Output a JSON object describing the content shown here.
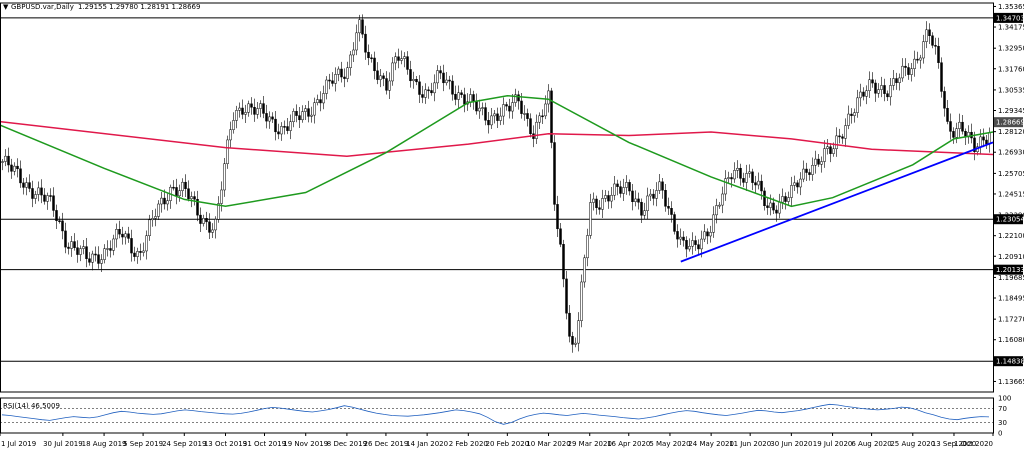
{
  "header": {
    "arrow": "▼",
    "symbol": "GBPUSD.var,Daily",
    "ohlc": "1.29155 1.29780 1.28191 1.28669"
  },
  "rsi": {
    "label": "RSI(14) 46.5009",
    "ticks": [
      "100",
      "70",
      "30",
      "0"
    ],
    "levels": [
      70,
      30
    ],
    "values": [
      52,
      50,
      47,
      44,
      41,
      38,
      36,
      40,
      44,
      47,
      45,
      43,
      46,
      52,
      58,
      62,
      60,
      57,
      55,
      53,
      55,
      59,
      63,
      66,
      64,
      61,
      59,
      57,
      55,
      54,
      56,
      60,
      65,
      70,
      73,
      71,
      68,
      65,
      62,
      60,
      63,
      67,
      72,
      78,
      74,
      68,
      62,
      57,
      53,
      50,
      49,
      48,
      50,
      52,
      55,
      58,
      62,
      66,
      64,
      60,
      55,
      45,
      32,
      25,
      30,
      40,
      48,
      53,
      57,
      55,
      52,
      50,
      53,
      56,
      54,
      51,
      49,
      47,
      44,
      42,
      40,
      43,
      47,
      52,
      57,
      61,
      64,
      62,
      58,
      55,
      52,
      50,
      53,
      57,
      61,
      65,
      63,
      60,
      58,
      61,
      64,
      68,
      73,
      78,
      82,
      80,
      76,
      73,
      70,
      68,
      66,
      68,
      70,
      74,
      72,
      66,
      58,
      52,
      45,
      40,
      38,
      42,
      45,
      47,
      46
    ]
  },
  "price_axis": {
    "ticks": [
      "1.35365",
      "1.34175",
      "1.32950",
      "1.31760",
      "1.30535",
      "1.29345",
      "1.28120",
      "1.26930",
      "1.25705",
      "1.24515",
      "1.23290",
      "1.22100",
      "1.20910",
      "1.19685",
      "1.18495",
      "1.17270",
      "1.16080",
      "1.14890",
      "1.13665"
    ],
    "tags": [
      {
        "text": "1.34703",
        "color": "#000000"
      },
      {
        "text": "1.28669",
        "color": "#4d4d4d"
      },
      {
        "text": "1.23054",
        "color": "#000000"
      },
      {
        "text": "1.20133",
        "color": "#000000"
      },
      {
        "text": "1.14838",
        "color": "#000000"
      }
    ]
  },
  "time_axis": {
    "labels": [
      "1 Jul 2019",
      "30 Jul 2019",
      "18 Aug 2019",
      "5 Sep 2019",
      "24 Sep 2019",
      "13 Oct 2019",
      "31 Oct 2019",
      "19 Nov 2019",
      "8 Dec 2019",
      "26 Dec 2019",
      "14 Jan 2020",
      "2 Feb 2020",
      "20 Feb 2020",
      "10 Mar 2020",
      "29 Mar 2020",
      "16 Apr 2020",
      "5 May 2020",
      "24 May 2020",
      "11 Jun 2020",
      "30 Jun 2020",
      "19 Jul 2020",
      "6 Aug 2020",
      "25 Aug 2020",
      "13 Sep 2020",
      "1 Oct 2020"
    ]
  },
  "chart_data": {
    "type": "candlestick",
    "symbol": "GBPUSD.var",
    "timeframe": "Daily",
    "last_bar": {
      "open": 1.29155,
      "high": 1.2978,
      "low": 1.28191,
      "close": 1.28669
    },
    "ylim": [
      1.13055,
      1.35565
    ],
    "x_range": [
      "1 Jul 2019",
      "1 Oct 2020"
    ],
    "close_path": [
      [
        "1 Jul 2019",
        1.265
      ],
      [
        "12 Jul 2019",
        1.252
      ],
      [
        "25 Jul 2019",
        1.238
      ],
      [
        "1 Aug 2019",
        1.217
      ],
      [
        "10 Aug 2019",
        1.207
      ],
      [
        "18 Aug 2019",
        1.212
      ],
      [
        "26 Aug 2019",
        1.222
      ],
      [
        "3 Sep 2019",
        1.21
      ],
      [
        "10 Sep 2019",
        1.232
      ],
      [
        "18 Sep 2019",
        1.25
      ],
      [
        "24 Sep 2019",
        1.247
      ],
      [
        "1 Oct 2019",
        1.232
      ],
      [
        "8 Oct 2019",
        1.226
      ],
      [
        "13 Oct 2019",
        1.265
      ],
      [
        "16 Oct 2019",
        1.29
      ],
      [
        "21 Oct 2019",
        1.297
      ],
      [
        "31 Oct 2019",
        1.29
      ],
      [
        "8 Nov 2019",
        1.283
      ],
      [
        "19 Nov 2019",
        1.292
      ],
      [
        "1 Dec 2019",
        1.31
      ],
      [
        "8 Dec 2019",
        1.318
      ],
      [
        "13 Dec 2019",
        1.345
      ],
      [
        "18 Dec 2019",
        1.32
      ],
      [
        "26 Dec 2019",
        1.31
      ],
      [
        "31 Dec 2019",
        1.325
      ],
      [
        "8 Jan 2020",
        1.31
      ],
      [
        "14 Jan 2020",
        1.303
      ],
      [
        "20 Jan 2020",
        1.313
      ],
      [
        "2 Feb 2020",
        1.298
      ],
      [
        "10 Feb 2020",
        1.29
      ],
      [
        "20 Feb 2020",
        1.293
      ],
      [
        "25 Feb 2020",
        1.3
      ],
      [
        "3 Mar 2020",
        1.28
      ],
      [
        "10 Mar 2020",
        1.3
      ],
      [
        "13 Mar 2020",
        1.232
      ],
      [
        "16 Mar 2020",
        1.21
      ],
      [
        "20 Mar 2020",
        1.153
      ],
      [
        "23 Mar 2020",
        1.163
      ],
      [
        "29 Mar 2020",
        1.24
      ],
      [
        "6 Apr 2020",
        1.243
      ],
      [
        "16 Apr 2020",
        1.25
      ],
      [
        "22 Apr 2020",
        1.235
      ],
      [
        "1 May 2020",
        1.25
      ],
      [
        "10 May 2020",
        1.215
      ],
      [
        "15 May 2020",
        1.213
      ],
      [
        "24 May 2020",
        1.228
      ],
      [
        "3 Jun 2020",
        1.26
      ],
      [
        "11 Jun 2020",
        1.255
      ],
      [
        "19 Jun 2020",
        1.237
      ],
      [
        "30 Jun 2020",
        1.245
      ],
      [
        "8 Jul 2020",
        1.262
      ],
      [
        "19 Jul 2020",
        1.27
      ],
      [
        "27 Jul 2020",
        1.293
      ],
      [
        "6 Aug 2020",
        1.308
      ],
      [
        "14 Aug 2020",
        1.306
      ],
      [
        "25 Aug 2020",
        1.32
      ],
      [
        "1 Sep 2020",
        1.34
      ],
      [
        "5 Sep 2020",
        1.322
      ],
      [
        "10 Sep 2020",
        1.283
      ],
      [
        "16 Sep 2020",
        1.285
      ],
      [
        "22 Sep 2020",
        1.27
      ],
      [
        "27 Sep 2020",
        1.278
      ],
      [
        "1 Oct 2020",
        1.287
      ]
    ],
    "moving_averages": [
      {
        "color": "#e0184a",
        "path": [
          [
            "1 Jul 2019",
            1.287
          ],
          [
            "13 Oct 2019",
            1.272
          ],
          [
            "8 Dec 2019",
            1.267
          ],
          [
            "2 Feb 2020",
            1.274
          ],
          [
            "10 Mar 2020",
            1.28
          ],
          [
            "16 Apr 2020",
            1.279
          ],
          [
            "24 May 2020",
            1.281
          ],
          [
            "30 Jun 2020",
            1.277
          ],
          [
            "6 Aug 2020",
            1.271
          ],
          [
            "1 Oct 2020",
            1.268
          ]
        ]
      },
      {
        "color": "#1e9a1e",
        "path": [
          [
            "1 Jul 2019",
            1.285
          ],
          [
            "18 Aug 2019",
            1.26
          ],
          [
            "24 Sep 2019",
            1.242
          ],
          [
            "13 Oct 2019",
            1.238
          ],
          [
            "19 Nov 2019",
            1.246
          ],
          [
            "26 Dec 2019",
            1.269
          ],
          [
            "2 Feb 2020",
            1.298
          ],
          [
            "20 Feb 2020",
            1.302
          ],
          [
            "10 Mar 2020",
            1.3
          ],
          [
            "16 Apr 2020",
            1.275
          ],
          [
            "24 May 2020",
            1.255
          ],
          [
            "30 Jun 2020",
            1.238
          ],
          [
            "19 Jul 2020",
            1.243
          ],
          [
            "25 Aug 2020",
            1.262
          ],
          [
            "13 Sep 2020",
            1.277
          ],
          [
            "1 Oct 2020",
            1.281
          ]
        ]
      }
    ],
    "trendline": {
      "color": "#0000ff",
      "from": [
        "10 May 2020",
        1.206
      ],
      "to": [
        "1 Oct 2020",
        1.275
      ]
    },
    "horizontal_levels": [
      1.34703,
      1.23054,
      1.20133,
      1.14838
    ]
  }
}
